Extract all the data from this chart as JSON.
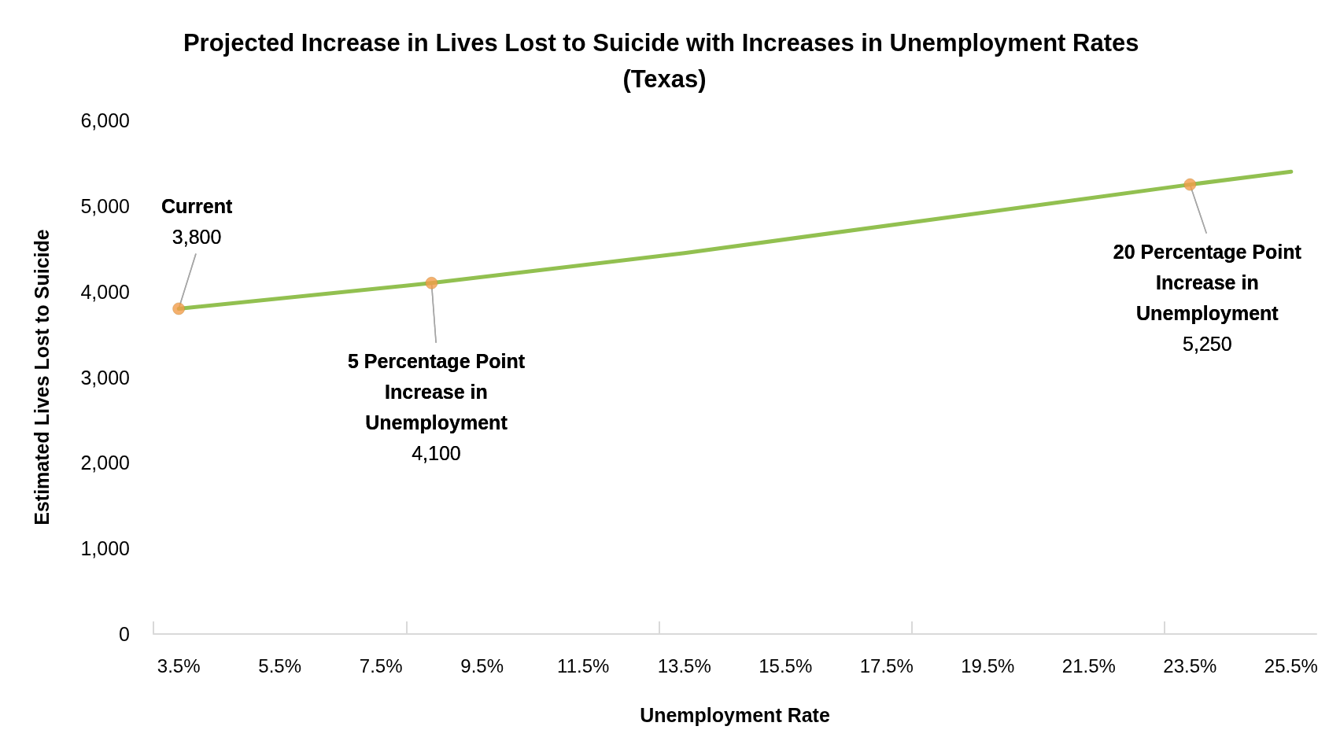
{
  "chart_data": {
    "type": "line",
    "title": "Projected Increase in Lives Lost to Suicide with Increases in Unemployment Rates (Texas)",
    "xlabel": "Unemployment Rate",
    "ylabel": "Estimated Lives Lost to Suicide",
    "series": [
      {
        "color": "#92c050",
        "x": [
          3.5,
          8.5,
          13.5,
          18.5,
          23.5,
          25.5
        ],
        "values": [
          3800,
          4100,
          4450,
          4850,
          5250,
          5400
        ],
        "marker": "none"
      },
      {
        "type": "scatter",
        "color": "#f39c4a",
        "x": [
          3.5,
          8.5,
          23.5
        ],
        "values": [
          3800,
          4100,
          5250
        ],
        "marker": "circle"
      }
    ],
    "annotations": [
      {
        "text": "Current\n3,800",
        "x": 3.5,
        "y": 3800
      },
      {
        "text": "5 Percentage Point Increase in Unemployment\n4,100",
        "x": 8.5,
        "y": 4100
      },
      {
        "text": "20 Percentage Point Increase in Unemployment\n5,250",
        "x": 23.5,
        "y": 5250
      }
    ],
    "xlim": [
      3,
      26
    ],
    "xticks": [
      {
        "value": 3,
        "label": null
      },
      {
        "value": 3.5,
        "label": "3.5%"
      },
      {
        "value": 5.5,
        "label": "5.5%"
      },
      {
        "value": 7.5,
        "label": "7.5%"
      },
      {
        "value": 8,
        "label": null
      },
      {
        "value": 9.5,
        "label": "9.5%"
      },
      {
        "value": 11.5,
        "label": "11.5%"
      },
      {
        "value": 13,
        "label": null
      },
      {
        "value": 13.5,
        "label": "13.5%"
      },
      {
        "value": 15.5,
        "label": "15.5%"
      },
      {
        "value": 17.5,
        "label": "17.5%"
      },
      {
        "value": 18,
        "label": null
      },
      {
        "value": 19.5,
        "label": "19.5%"
      },
      {
        "value": 21.5,
        "label": "21.5%"
      },
      {
        "value": 23,
        "label": null
      },
      {
        "value": 23.5,
        "label": "23.5%"
      },
      {
        "value": 25.5,
        "label": "25.5%"
      }
    ],
    "ylim": [
      0,
      6000
    ],
    "yticks": [
      {
        "value": 0,
        "label": "0"
      },
      {
        "value": 1000,
        "label": "1,000"
      },
      {
        "value": 2000,
        "label": "2,000"
      },
      {
        "value": 3000,
        "label": "3,000"
      },
      {
        "value": 4000,
        "label": "4,000"
      },
      {
        "value": 5000,
        "label": "5,000"
      },
      {
        "value": 6000,
        "label": "6,000"
      }
    ],
    "grid": false
  }
}
